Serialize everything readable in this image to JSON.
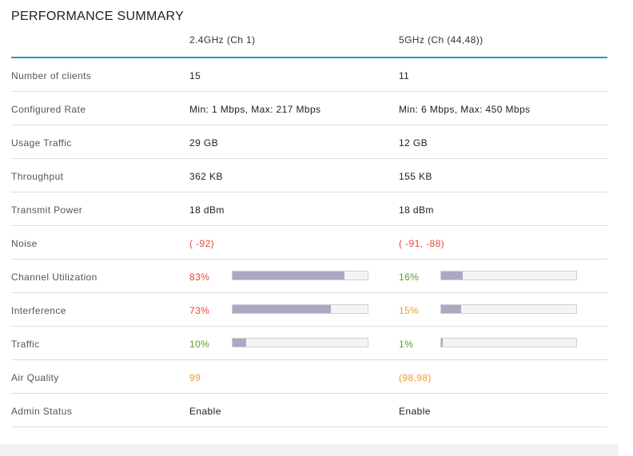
{
  "title": "PERFORMANCE SUMMARY",
  "columns": [
    "2.4GHz (Ch 1)",
    "5GHz (Ch (44,48))"
  ],
  "colors": {
    "accent_rule": "#2b93c9",
    "bar_fill": "#a9a9c3",
    "red": "#e8463a",
    "green": "#5c9b2a",
    "orange": "#ec9a33"
  },
  "rows": [
    {
      "label": "Number of clients",
      "v1": "15",
      "v2": "11"
    },
    {
      "label": "Configured Rate",
      "v1": "Min: 1 Mbps, Max: 217 Mbps",
      "v2": "Min: 6 Mbps, Max: 450 Mbps"
    },
    {
      "label": "Usage Traffic",
      "v1": "29 GB",
      "v2": "12 GB"
    },
    {
      "label": "Throughput",
      "v1": "362 KB",
      "v2": "155 KB"
    },
    {
      "label": "Transmit Power",
      "v1": "18 dBm",
      "v2": "18 dBm"
    },
    {
      "label": "Noise",
      "v1": "( -92)",
      "v2": "( -91, -88)",
      "v1_color": "red",
      "v2_color": "red"
    },
    {
      "label": "Channel Utilization",
      "v1": "83%",
      "v2": "16%",
      "v1_color": "red",
      "v2_color": "green",
      "bar1": 0.83,
      "bar2": 0.16
    },
    {
      "label": "Interference",
      "v1": "73%",
      "v2": "15%",
      "v1_color": "red",
      "v2_color": "orange",
      "bar1": 0.73,
      "bar2": 0.15
    },
    {
      "label": "Traffic",
      "v1": "10%",
      "v2": "1%",
      "v1_color": "green",
      "v2_color": "green",
      "bar1": 0.1,
      "bar2": 0.01
    },
    {
      "label": "Air Quality",
      "v1": "99",
      "v2": "(98,98)",
      "v1_color": "orange",
      "v2_color": "orange"
    },
    {
      "label": "Admin Status",
      "v1": "Enable",
      "v2": "Enable"
    }
  ]
}
